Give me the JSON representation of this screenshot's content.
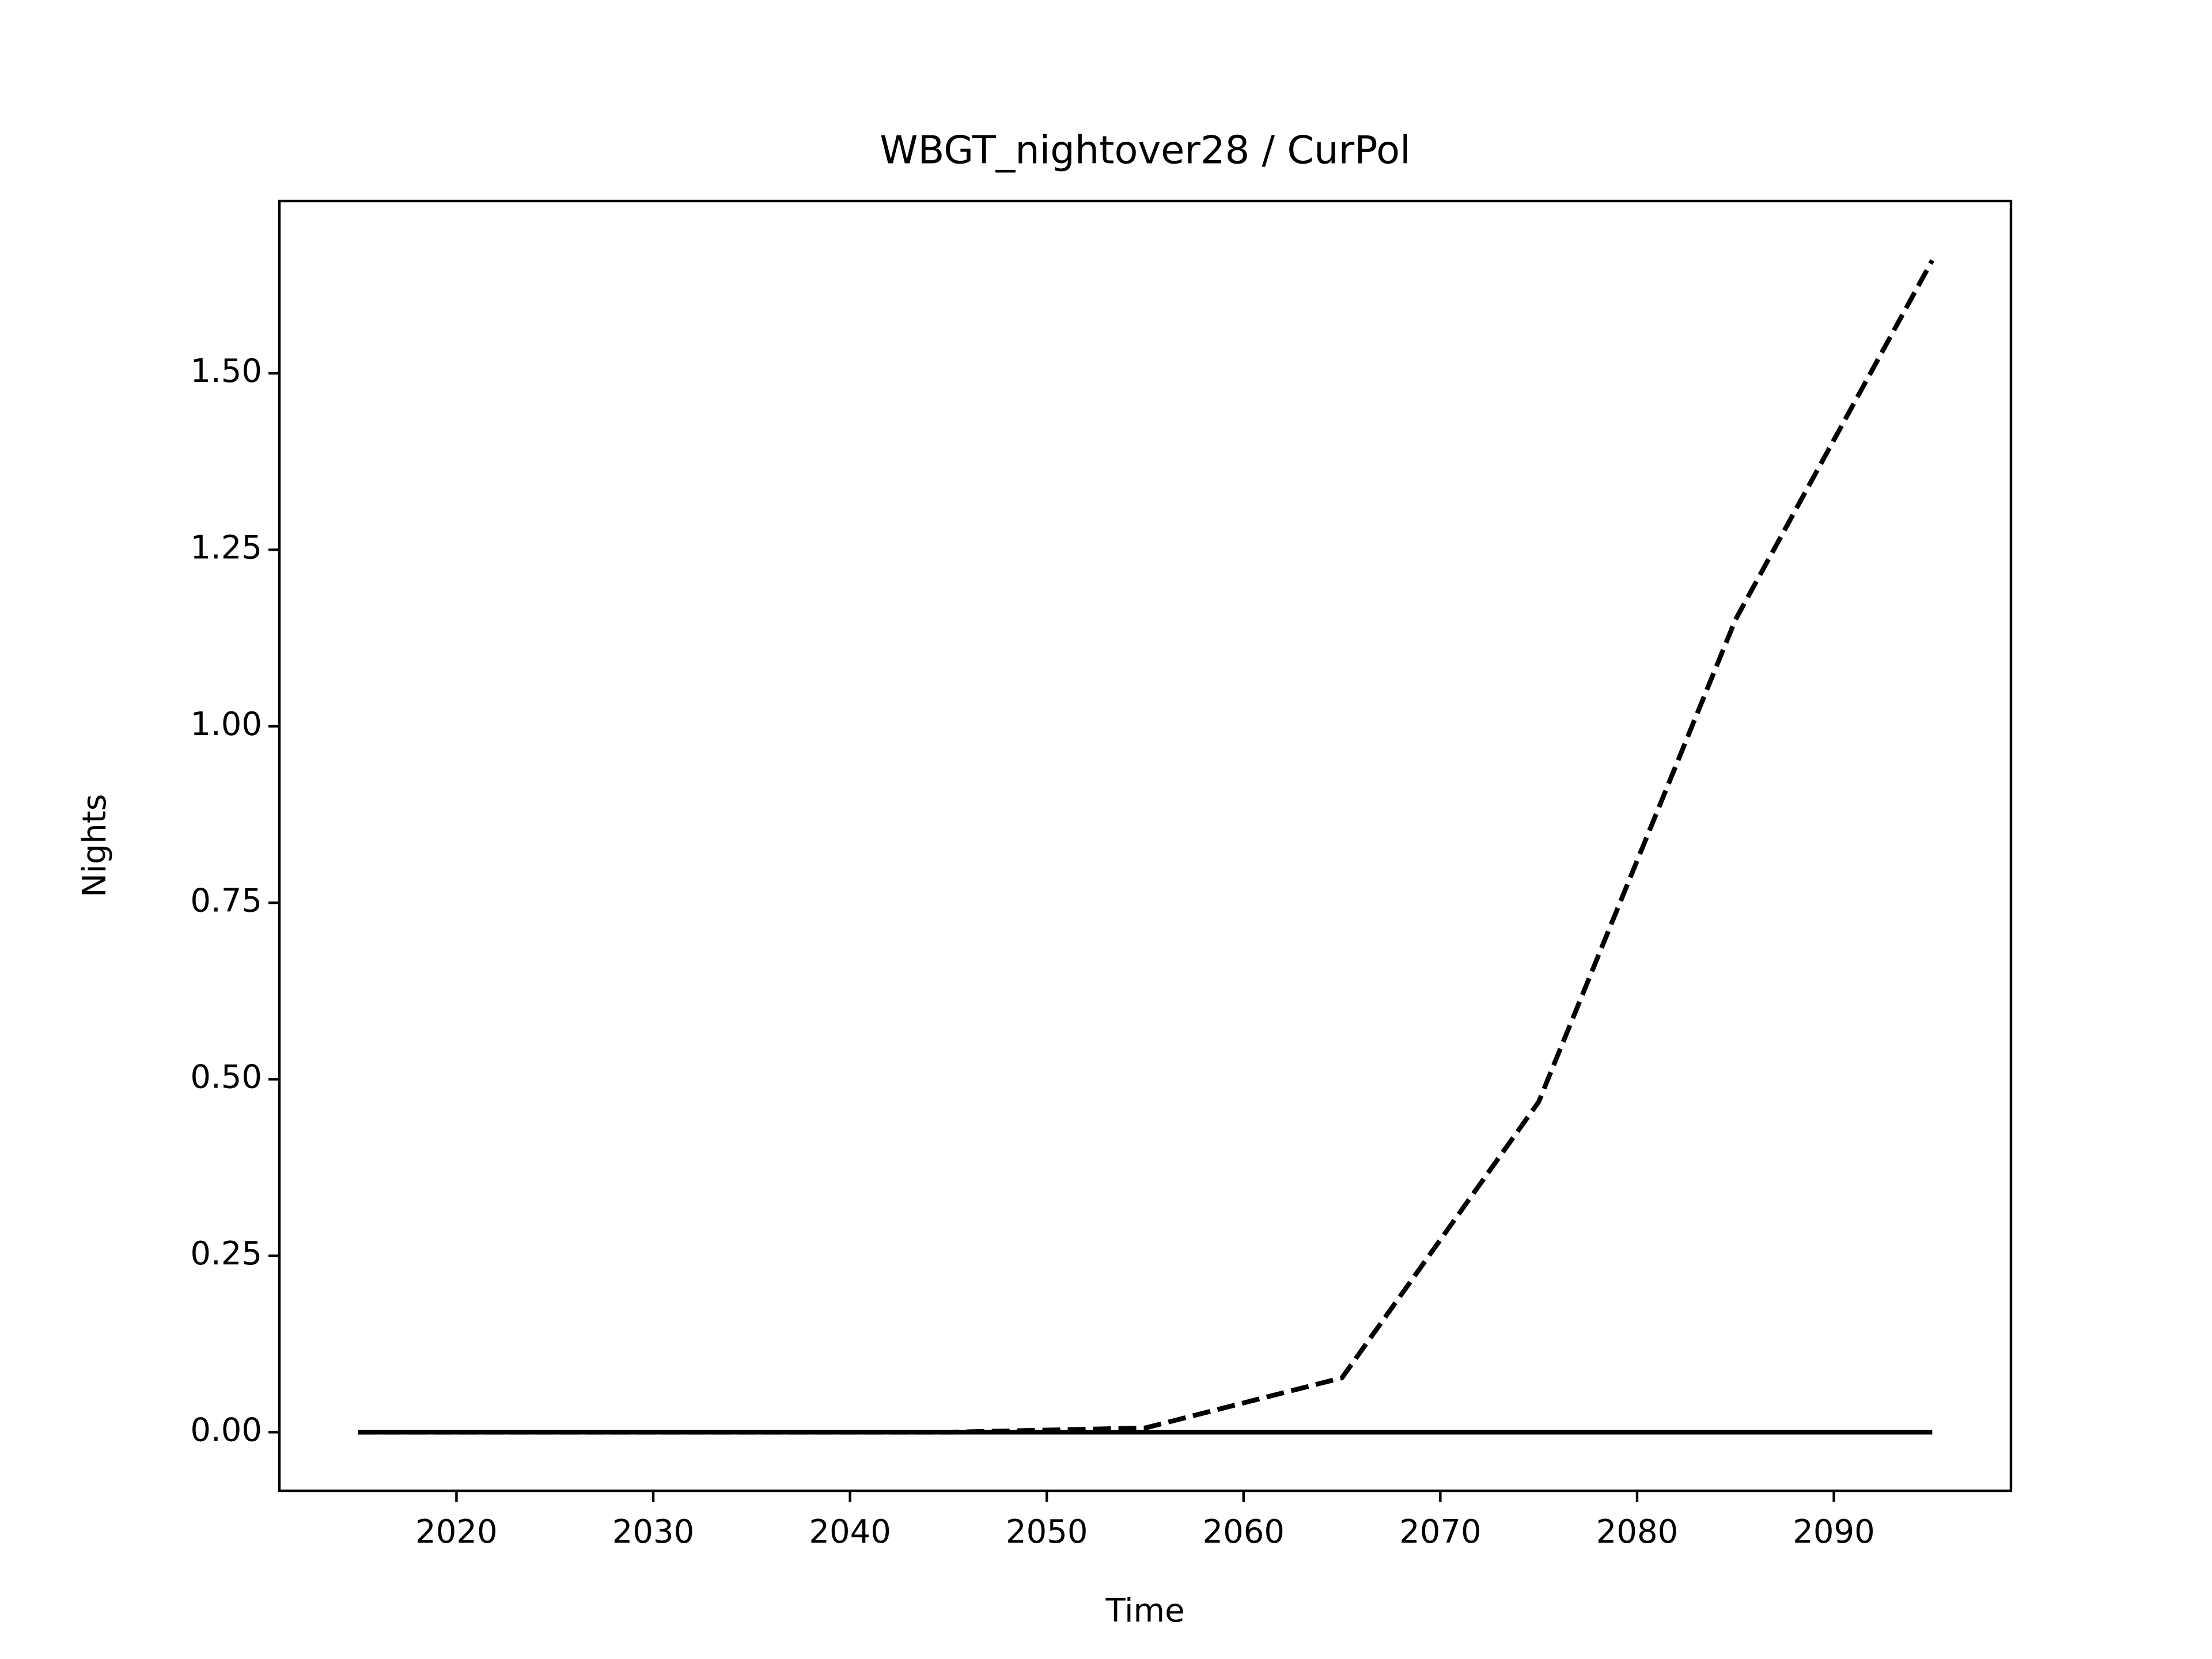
{
  "chart_data": {
    "type": "line",
    "title": "WBGT_nightover28 / CurPol",
    "xlabel": "Time",
    "ylabel": "Nights",
    "x": [
      2015,
      2025,
      2035,
      2045,
      2055,
      2065,
      2075,
      2085,
      2095
    ],
    "series": [
      {
        "color": "#000000",
        "dashed": true,
        "values": [
          0,
          0,
          0,
          0,
          0.006,
          0.077,
          0.468,
          1.151,
          1.66
        ]
      },
      {
        "color": "#000000",
        "dashed": false,
        "values": [
          0,
          0,
          0,
          0,
          0,
          0,
          0,
          0,
          0
        ]
      }
    ],
    "xlim": [
      2011,
      2099
    ],
    "ylim": [
      -0.083,
      1.744
    ],
    "xticks": [
      2020,
      2030,
      2040,
      2050,
      2060,
      2070,
      2080,
      2090
    ],
    "yticks": [
      {
        "value": 0,
        "label": "0.00"
      },
      {
        "value": 0.25,
        "label": "0.25"
      },
      {
        "value": 0.5,
        "label": "0.50"
      },
      {
        "value": 0.75,
        "label": "0.75"
      },
      {
        "value": 1,
        "label": "1.00"
      },
      {
        "value": 1.25,
        "label": "1.25"
      },
      {
        "value": 1.5,
        "label": "1.50"
      }
    ],
    "grid": false
  }
}
